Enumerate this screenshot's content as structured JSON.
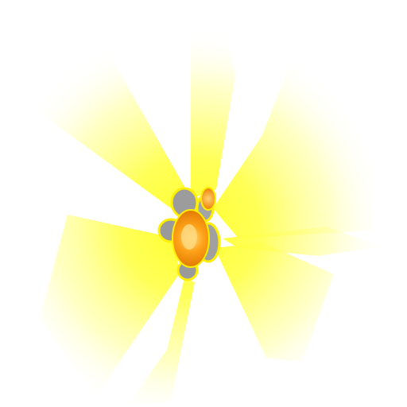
{
  "scene": {
    "background_color": "#ffffff",
    "effect": {
      "type": "explosion-sprite",
      "ray_color_inner": "#ffff33",
      "ray_color_outer": "#ffffff",
      "core_color_hot": "#ffd060",
      "core_color_mid": "#ff9a10",
      "core_color_edge": "#e07800",
      "debris_color": "#9a9a9a",
      "outline_color": "#ffee00"
    }
  }
}
